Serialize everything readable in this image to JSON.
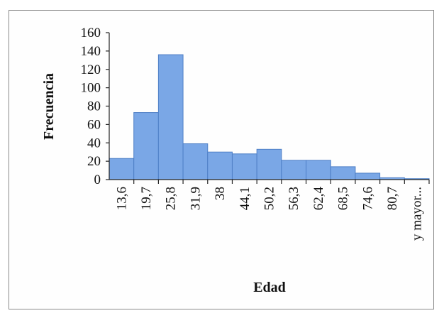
{
  "chart_data": {
    "type": "bar",
    "xlabel": "Edad",
    "ylabel": "Frecuencia",
    "categories": [
      "13,6",
      "19,7",
      "25,8",
      "31,9",
      "38",
      "44,1",
      "50,2",
      "56,3",
      "62,4",
      "68,5",
      "74,6",
      "80,7",
      "y mayor..."
    ],
    "values": [
      23,
      73,
      136,
      39,
      30,
      28,
      33,
      21,
      21,
      14,
      7,
      2,
      1
    ],
    "y_ticks": [
      0,
      20,
      40,
      60,
      80,
      100,
      120,
      140,
      160
    ],
    "ylim": [
      0,
      160
    ],
    "grid": false,
    "legend": "none",
    "colors": {
      "bar_fill": "#7aa7e6",
      "bar_edge": "#4e7fc6"
    }
  }
}
